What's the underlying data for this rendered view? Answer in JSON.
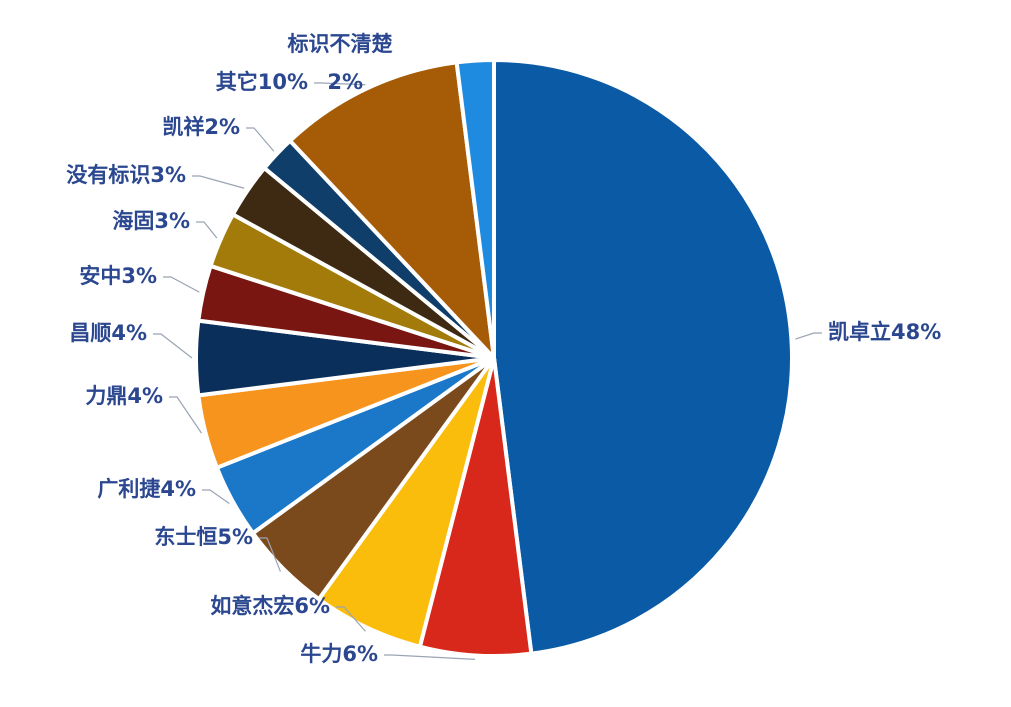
{
  "chart_data": {
    "type": "pie",
    "categories": [
      "凯卓立",
      "牛力",
      "如意杰宏",
      "东士恒",
      "广利捷",
      "力鼎",
      "昌顺",
      "安中",
      "海固",
      "没有标识",
      "凯祥",
      "其它",
      "标识不清楚"
    ],
    "values": [
      48,
      6,
      6,
      5,
      4,
      4,
      4,
      3,
      3,
      3,
      2,
      10,
      2
    ],
    "value_labels": [
      "48%",
      "6%",
      "6%",
      "5%",
      "4%",
      "4%",
      "4%",
      "3%",
      "3%",
      "3%",
      "2%",
      "10%",
      "2%"
    ],
    "colors": [
      "#0b5aa6",
      "#d8281b",
      "#fbbd0b",
      "#7a4a1c",
      "#1b78c8",
      "#f7941d",
      "#0b2f5b",
      "#7a1611",
      "#a37b0b",
      "#3e2a12",
      "#0f3e6b",
      "#a65b07",
      "#1f8be0"
    ]
  }
}
